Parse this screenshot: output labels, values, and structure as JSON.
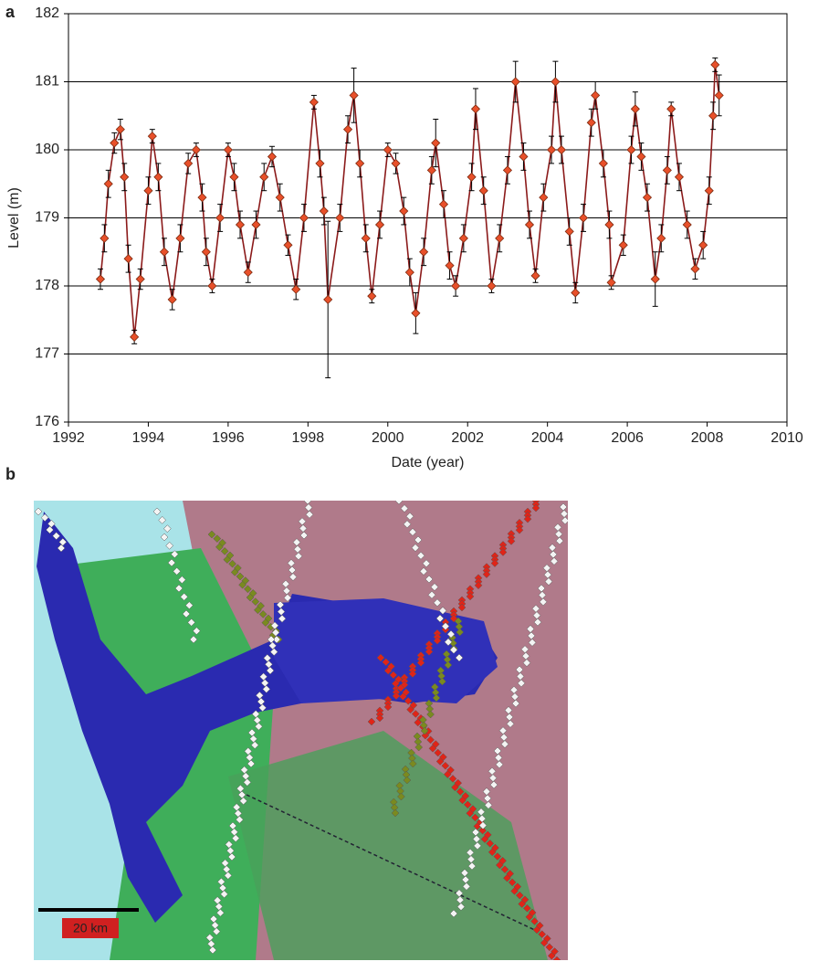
{
  "panel_labels": [
    "a",
    "b"
  ],
  "chart_data": {
    "type": "line",
    "x_label": "Date (year)",
    "y_label": "Level (m)",
    "x": [
      1992.8,
      1992.9,
      1993.0,
      1993.15,
      1993.3,
      1993.4,
      1993.5,
      1993.65,
      1993.8,
      1994.0,
      1994.1,
      1994.25,
      1994.4,
      1994.6,
      1994.8,
      1995.0,
      1995.2,
      1995.35,
      1995.45,
      1995.6,
      1995.8,
      1996.0,
      1996.15,
      1996.3,
      1996.5,
      1996.7,
      1996.9,
      1997.1,
      1997.3,
      1997.5,
      1997.7,
      1997.9,
      1998.15,
      1998.3,
      1998.4,
      1998.5,
      1998.8,
      1999.0,
      1999.15,
      1999.3,
      1999.45,
      1999.6,
      1999.8,
      2000.0,
      2000.2,
      2000.4,
      2000.55,
      2000.7,
      2000.9,
      2001.1,
      2001.2,
      2001.4,
      2001.55,
      2001.7,
      2001.9,
      2002.1,
      2002.2,
      2002.4,
      2002.6,
      2002.8,
      2003.0,
      2003.2,
      2003.4,
      2003.55,
      2003.7,
      2003.9,
      2004.1,
      2004.2,
      2004.35,
      2004.55,
      2004.7,
      2004.9,
      2005.1,
      2005.2,
      2005.4,
      2005.55,
      2005.6,
      2005.9,
      2006.1,
      2006.2,
      2006.35,
      2006.5,
      2006.7,
      2006.85,
      2007.0,
      2007.1,
      2007.3,
      2007.5,
      2007.7,
      2007.9,
      2008.05,
      2008.15,
      2008.2,
      2008.3
    ],
    "series": [
      {
        "color": "#e8502a",
        "line_color": "#8b1a1a",
        "values": [
          178.1,
          178.7,
          179.5,
          180.1,
          180.3,
          179.6,
          178.4,
          177.25,
          178.1,
          179.4,
          180.2,
          179.6,
          178.5,
          177.8,
          178.7,
          179.8,
          180.0,
          179.3,
          178.5,
          178.0,
          179.0,
          180.0,
          179.6,
          178.9,
          178.2,
          178.9,
          179.6,
          179.9,
          179.3,
          178.6,
          177.95,
          179.0,
          180.7,
          179.8,
          179.1,
          177.8,
          179.0,
          180.3,
          180.8,
          179.8,
          178.7,
          177.85,
          178.9,
          180.0,
          179.8,
          179.1,
          178.2,
          177.6,
          178.5,
          179.7,
          180.1,
          179.2,
          178.3,
          178.0,
          178.7,
          179.6,
          180.6,
          179.4,
          178.0,
          178.7,
          179.7,
          181.0,
          179.9,
          178.9,
          178.15,
          179.3,
          180.0,
          181.0,
          180.0,
          178.8,
          177.9,
          179.0,
          180.4,
          180.8,
          179.8,
          178.9,
          178.05,
          178.6,
          180.0,
          180.6,
          179.9,
          179.3,
          178.1,
          178.7,
          179.7,
          180.6,
          179.6,
          178.9,
          178.25,
          178.6,
          179.4,
          180.5,
          181.25,
          180.8
        ],
        "errors": [
          0.15,
          0.2,
          0.2,
          0.15,
          0.15,
          0.2,
          0.2,
          0.1,
          0.15,
          0.2,
          0.1,
          0.2,
          0.2,
          0.15,
          0.2,
          0.15,
          0.1,
          0.2,
          0.2,
          0.1,
          0.2,
          0.1,
          0.2,
          0.2,
          0.15,
          0.2,
          0.2,
          0.15,
          0.2,
          0.15,
          0.15,
          0.2,
          0.1,
          0.2,
          0.2,
          1.15,
          0.2,
          0.2,
          0.4,
          0.2,
          0.2,
          0.1,
          0.2,
          0.1,
          0.15,
          0.2,
          0.2,
          0.3,
          0.2,
          0.2,
          0.35,
          0.2,
          0.2,
          0.15,
          0.2,
          0.2,
          0.3,
          0.2,
          0.1,
          0.2,
          0.2,
          0.3,
          0.2,
          0.2,
          0.1,
          0.2,
          0.2,
          0.3,
          0.2,
          0.2,
          0.15,
          0.2,
          0.2,
          0.2,
          0.2,
          0.2,
          0.1,
          0.15,
          0.2,
          0.25,
          0.2,
          0.2,
          0.4,
          0.2,
          0.2,
          0.1,
          0.2,
          0.2,
          0.15,
          0.2,
          0.2,
          0.2,
          0.1,
          0.3
        ]
      }
    ],
    "xlim": [
      1992,
      2010
    ],
    "xticks": [
      1992,
      1994,
      1996,
      1998,
      2000,
      2002,
      2004,
      2006,
      2008,
      2010
    ],
    "ylim": [
      176,
      182
    ],
    "yticks": [
      176,
      177,
      178,
      179,
      180,
      181,
      182
    ],
    "grid": true
  },
  "map": {
    "scale_label": "20 km"
  }
}
